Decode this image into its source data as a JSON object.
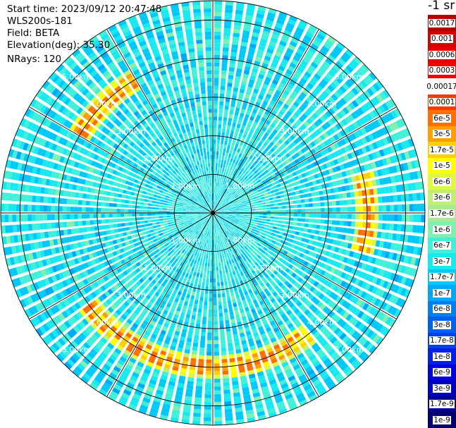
{
  "info": {
    "start_time": "Start time: 2023/09/12 20:47:48",
    "instrument": "WLS200s-181",
    "field": "Field: BETA",
    "elevation": "Elevation(deg): 35.30",
    "nrays": "NRays: 120"
  },
  "colorbar": {
    "unit_label": "-1 sr",
    "levels": [
      {
        "label": "0.0017",
        "color": "#b40000"
      },
      {
        "label": "0.001",
        "color": "#d60000"
      },
      {
        "label": "0.0006",
        "color": "#e60000"
      },
      {
        "label": "0.0003",
        "color": "#f40000"
      },
      {
        "label": "0.00017",
        "color": "#ffffff"
      },
      {
        "label": "0.0001",
        "color": "#ff3a00"
      },
      {
        "label": "6e-5",
        "color": "#ff7000"
      },
      {
        "label": "3e-5",
        "color": "#ffa000"
      },
      {
        "label": "1.7e-5",
        "color": "#ffd000"
      },
      {
        "label": "1e-5",
        "color": "#ffff00"
      },
      {
        "label": "6e-6",
        "color": "#e0f840"
      },
      {
        "label": "3e-6",
        "color": "#c0f070"
      },
      {
        "label": "1.7e-6",
        "color": "#a8ec90"
      },
      {
        "label": "1e-6",
        "color": "#80f0b0"
      },
      {
        "label": "6e-7",
        "color": "#40f0d8"
      },
      {
        "label": "3e-7",
        "color": "#18e8f0"
      },
      {
        "label": "1.7e-7",
        "color": "#00c8f8"
      },
      {
        "label": "1e-7",
        "color": "#00a8f8"
      },
      {
        "label": "6e-8",
        "color": "#0080f0"
      },
      {
        "label": "3e-8",
        "color": "#0060f0"
      },
      {
        "label": "1.7e-8",
        "color": "#0040f0"
      },
      {
        "label": "1e-8",
        "color": "#0020e8"
      },
      {
        "label": "6e-9",
        "color": "#0000e0"
      },
      {
        "label": "3e-9",
        "color": "#0000c0"
      },
      {
        "label": "1.7e-9",
        "color": "#000098"
      },
      {
        "label": "1e-9",
        "color": "#000070"
      }
    ]
  },
  "chart_data": {
    "type": "heatmap",
    "projection": "polar PPI",
    "field": "BETA",
    "elevation_deg": 35.3,
    "n_rays": 120,
    "max_range_km": 5.5,
    "range_rings_km": [
      1,
      2,
      3,
      4,
      5
    ],
    "ring_labels": [
      "1.00km",
      "2.00km",
      "3.00km",
      "4.00km",
      "5.00km"
    ],
    "spoke_angles_deg": [
      0,
      30,
      60,
      90,
      120,
      150,
      180,
      210,
      240,
      270,
      300,
      330
    ],
    "background_level": "3e-7",
    "aerosol_layer": {
      "range_km": 4.0,
      "level": "1.7e-5",
      "peak_level": "6e-5",
      "sectors_deg": [
        [
          75,
          105
        ],
        [
          140,
          235
        ],
        [
          300,
          330
        ]
      ]
    },
    "colorscale": "logarithmic",
    "colorscale_range": [
      1e-09,
      0.0017
    ]
  }
}
